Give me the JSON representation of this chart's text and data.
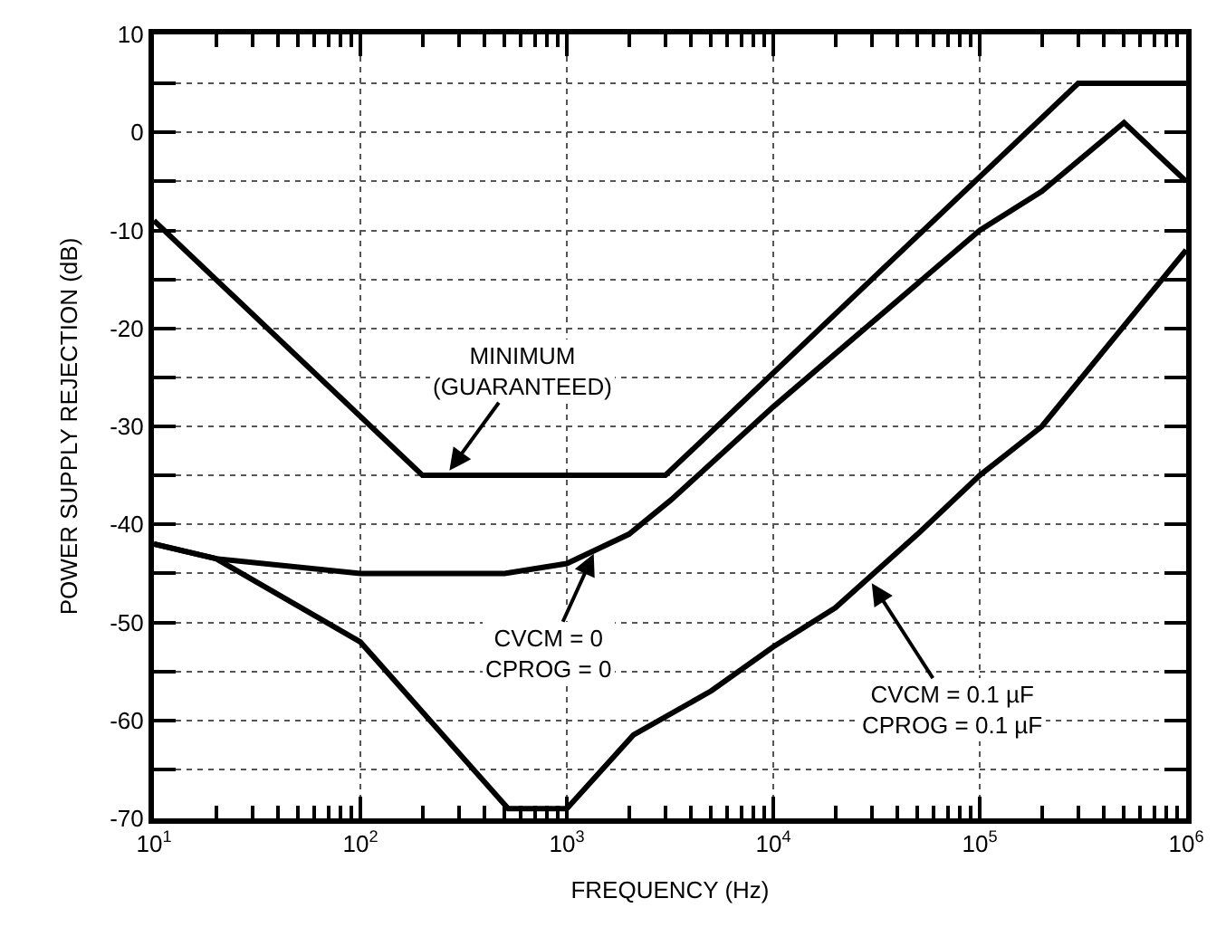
{
  "chart_data": {
    "type": "line",
    "xlabel": "FREQUENCY (Hz)",
    "ylabel": "POWER SUPPLY REJECTION (dB)",
    "log": "x",
    "grid": true,
    "marker": "none",
    "line_style": "solid",
    "xlim": [
      10,
      1000000
    ],
    "ylim": [
      -70,
      10
    ],
    "xticks": [
      {
        "value": 10,
        "label": "10$^{1}$"
      },
      {
        "value": 20,
        "label": null
      },
      {
        "value": 30,
        "label": null
      },
      {
        "value": 40,
        "label": null
      },
      {
        "value": 50,
        "label": null
      },
      {
        "value": 60,
        "label": null
      },
      {
        "value": 70,
        "label": null
      },
      {
        "value": 80,
        "label": null
      },
      {
        "value": 90,
        "label": null
      },
      {
        "value": 100,
        "label": "10$^{2}$"
      },
      {
        "value": 200,
        "label": null
      },
      {
        "value": 300,
        "label": null
      },
      {
        "value": 400,
        "label": null
      },
      {
        "value": 500,
        "label": null
      },
      {
        "value": 600,
        "label": null
      },
      {
        "value": 700,
        "label": null
      },
      {
        "value": 800,
        "label": null
      },
      {
        "value": 900,
        "label": null
      },
      {
        "value": 1000,
        "label": "10$^{3}$"
      },
      {
        "value": 2000,
        "label": null
      },
      {
        "value": 3000,
        "label": null
      },
      {
        "value": 4000,
        "label": null
      },
      {
        "value": 5000,
        "label": null
      },
      {
        "value": 6000,
        "label": null
      },
      {
        "value": 7000,
        "label": null
      },
      {
        "value": 8000,
        "label": null
      },
      {
        "value": 9000,
        "label": null
      },
      {
        "value": 10000,
        "label": "10$^{4}$"
      },
      {
        "value": 20000,
        "label": null
      },
      {
        "value": 30000,
        "label": null
      },
      {
        "value": 40000,
        "label": null
      },
      {
        "value": 50000,
        "label": null
      },
      {
        "value": 60000,
        "label": null
      },
      {
        "value": 70000,
        "label": null
      },
      {
        "value": 80000,
        "label": null
      },
      {
        "value": 90000,
        "label": null
      },
      {
        "value": 100000,
        "label": "10$^{5}$"
      },
      {
        "value": 200000,
        "label": null
      },
      {
        "value": 300000,
        "label": null
      },
      {
        "value": 400000,
        "label": null
      },
      {
        "value": 500000,
        "label": null
      },
      {
        "value": 600000,
        "label": null
      },
      {
        "value": 700000,
        "label": null
      },
      {
        "value": 800000,
        "label": null
      },
      {
        "value": 900000,
        "label": null
      },
      {
        "value": 1000000,
        "label": "10$^{6}$"
      }
    ],
    "yticks": [
      -70,
      {
        "value": -65,
        "label": null
      },
      -60,
      {
        "value": -55,
        "label": null
      },
      -50,
      {
        "value": -45,
        "label": null
      },
      -40,
      {
        "value": -35,
        "label": null
      },
      -30,
      {
        "value": -25,
        "label": null
      },
      -20,
      {
        "value": -15,
        "label": null
      },
      -10,
      {
        "value": -5,
        "label": null
      },
      0,
      {
        "value": 5,
        "label": null
      },
      10
    ],
    "series": [
      {
        "color": "#000000",
        "x": [
          10,
          200,
          3000,
          300000,
          1000000
        ],
        "values": [
          -9,
          -35,
          -35,
          5,
          5
        ]
      },
      {
        "color": "#000000",
        "x": [
          10,
          20,
          100,
          500,
          1000,
          2000,
          3200,
          10000,
          100000,
          200000,
          500000,
          1000000
        ],
        "values": [
          -42,
          -43.5,
          -45,
          -45,
          -44,
          -41,
          -37.5,
          -28,
          -10,
          -6,
          1,
          -5
        ]
      },
      {
        "color": "#000000",
        "x": [
          10,
          20,
          100,
          520,
          1000,
          2100,
          5000,
          10000,
          20000,
          50000,
          100000,
          200000,
          1000000
        ],
        "values": [
          -42,
          -43.5,
          -52,
          -69,
          -69,
          -61.5,
          -57,
          -52.5,
          -48.5,
          -41,
          -35,
          -30,
          -12
        ]
      }
    ],
    "annotations": [
      {
        "text": "MINIMUM\n(GUARANTEED)",
        "x": 270,
        "y": -34.5
      },
      {
        "text": "CVCM = 0\nCPROG = 0",
        "x": 1350,
        "y": -43
      },
      {
        "text": "CVCM = 0.1 µF\nCPROG = 0.1 µF",
        "x": 30000,
        "y": -46
      }
    ]
  }
}
